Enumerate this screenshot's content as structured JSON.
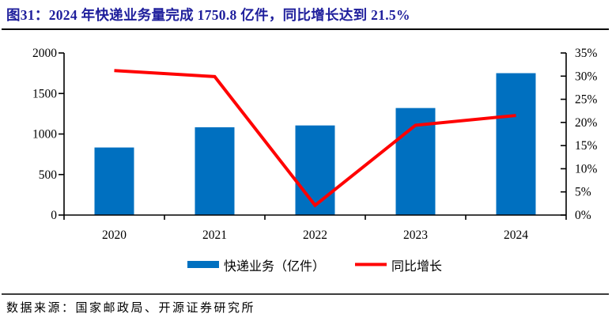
{
  "header": {
    "title": "图31：2024 年快递业务量完成 1750.8 亿件，同比增长达到 21.5%"
  },
  "footer": {
    "source": "数据来源：国家邮政局、开源证券研究所"
  },
  "colors": {
    "bar": "#0070C0",
    "line": "#FF0000",
    "title": "#1F1F9C",
    "axis": "#000000"
  },
  "chart_data": {
    "type": "bar",
    "subtype": "bar-and-line-dual-axis",
    "categories": [
      "2020",
      "2021",
      "2022",
      "2023",
      "2024"
    ],
    "series": [
      {
        "name": "快递业务（亿件）",
        "type": "bar",
        "axis": "left",
        "color": "#0070C0",
        "values": [
          833.6,
          1083.0,
          1105.8,
          1320.7,
          1750.8
        ]
      },
      {
        "name": "同比增长",
        "type": "line",
        "axis": "right",
        "color": "#FF0000",
        "unit": "%",
        "values": [
          31.2,
          29.9,
          2.1,
          19.4,
          21.5
        ]
      }
    ],
    "left_axis": {
      "min": 0,
      "max": 2000,
      "step": 500,
      "ticks": [
        "0",
        "500",
        "1000",
        "1500",
        "2000"
      ]
    },
    "right_axis": {
      "min": 0,
      "max": 35,
      "step": 5,
      "ticks": [
        "0%",
        "5%",
        "10%",
        "15%",
        "20%",
        "25%",
        "30%",
        "35%"
      ]
    },
    "grid": false,
    "legend_position": "bottom",
    "title": "图31：2024 年快递业务量完成 1750.8 亿件，同比增长达到 21.5%"
  }
}
